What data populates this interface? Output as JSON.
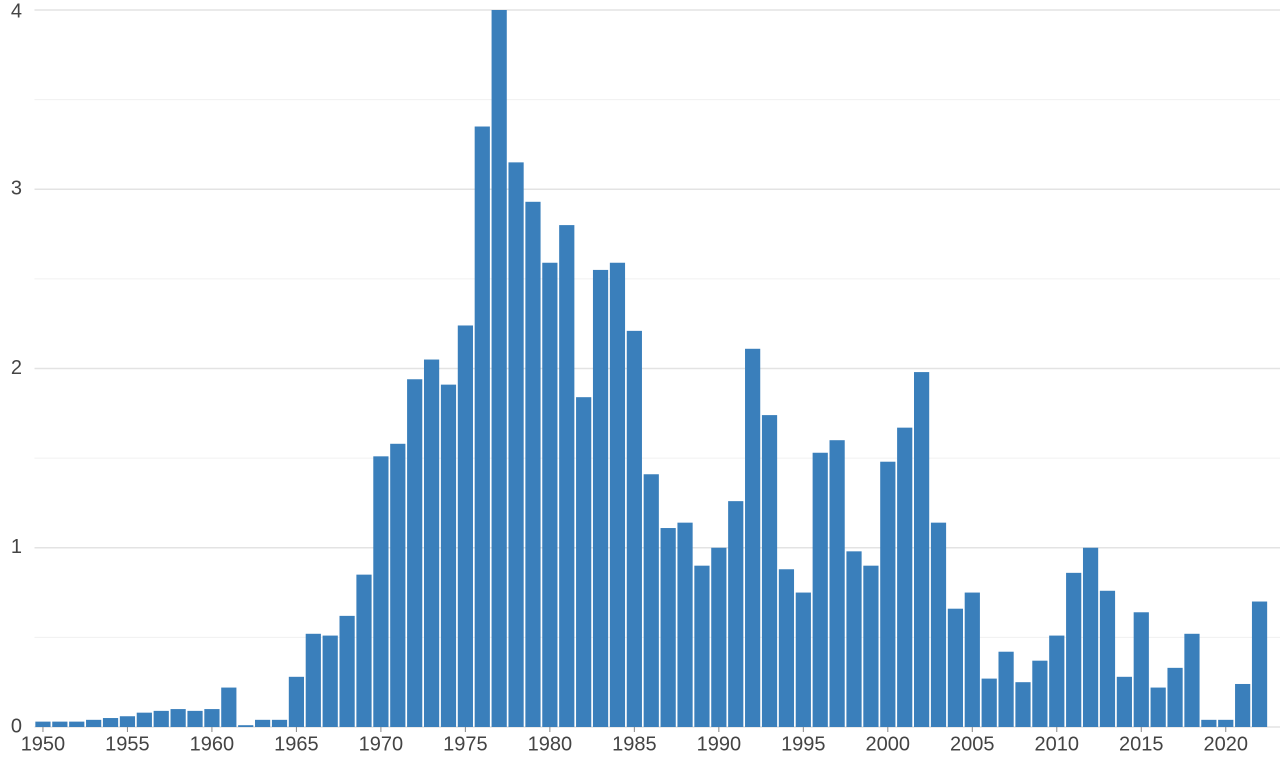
{
  "chart_data": {
    "type": "bar",
    "x": [
      1950,
      1951,
      1952,
      1953,
      1954,
      1955,
      1956,
      1957,
      1958,
      1959,
      1960,
      1961,
      1962,
      1963,
      1964,
      1965,
      1966,
      1967,
      1968,
      1969,
      1970,
      1971,
      1972,
      1973,
      1974,
      1975,
      1976,
      1977,
      1978,
      1979,
      1980,
      1981,
      1982,
      1983,
      1984,
      1985,
      1986,
      1987,
      1988,
      1989,
      1990,
      1991,
      1992,
      1993,
      1994,
      1995,
      1996,
      1997,
      1998,
      1999,
      2000,
      2001,
      2002,
      2003,
      2004,
      2005,
      2006,
      2007,
      2008,
      2009,
      2010,
      2011,
      2012,
      2013,
      2014,
      2015,
      2016,
      2017,
      2018,
      2019,
      2020,
      2021,
      2022
    ],
    "values": [
      0.03,
      0.03,
      0.03,
      0.04,
      0.05,
      0.06,
      0.08,
      0.09,
      0.1,
      0.09,
      0.1,
      0.22,
      0.01,
      0.04,
      0.04,
      0.28,
      0.52,
      0.51,
      0.62,
      0.85,
      1.51,
      1.58,
      1.94,
      2.05,
      1.91,
      2.24,
      3.35,
      4.0,
      3.15,
      2.93,
      2.59,
      2.8,
      1.84,
      2.55,
      2.59,
      2.21,
      1.41,
      1.11,
      1.14,
      0.9,
      1.0,
      1.26,
      2.11,
      1.74,
      0.88,
      0.75,
      1.53,
      1.6,
      0.98,
      0.9,
      1.48,
      1.67,
      1.98,
      1.14,
      0.66,
      0.75,
      0.27,
      0.42,
      0.25,
      0.37,
      0.51,
      0.86,
      1.0,
      0.76,
      0.28,
      0.64,
      0.22,
      0.33,
      0.52,
      0.04,
      0.04,
      0.24,
      0.7
    ],
    "color": "#3a7fbb",
    "xlim": [
      1949.5,
      2022.5
    ],
    "xticks": [
      1950,
      1955,
      1960,
      1965,
      1970,
      1975,
      1980,
      1985,
      1990,
      1995,
      2000,
      2005,
      2010,
      2015,
      2020
    ],
    "ylim": [
      0,
      4
    ],
    "yticks": [
      0,
      1,
      2,
      3,
      4
    ],
    "grid": true
  }
}
